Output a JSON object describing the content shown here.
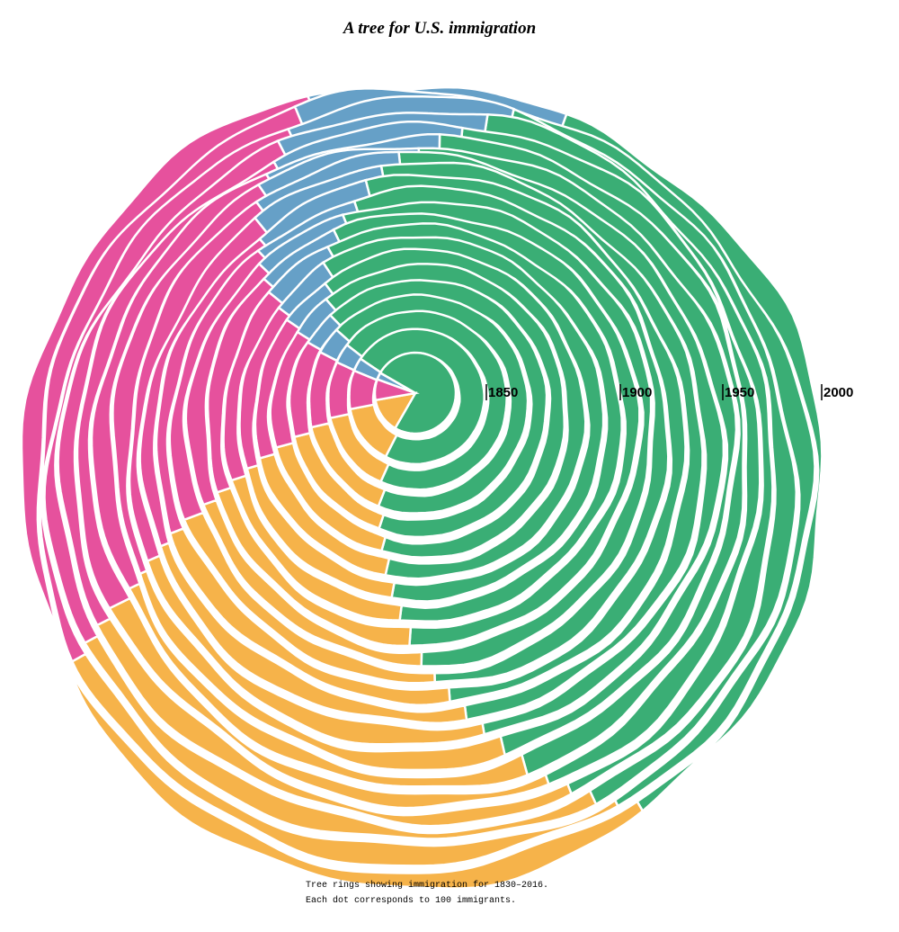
{
  "title": "A tree for U.S. immigration",
  "ring_labels": [
    "1850",
    "1900",
    "1950",
    "2000"
  ],
  "caption": [
    "Tree rings showing immigration for 1830–2016.",
    "Each dot corresponds to 100 immigrants."
  ]
}
